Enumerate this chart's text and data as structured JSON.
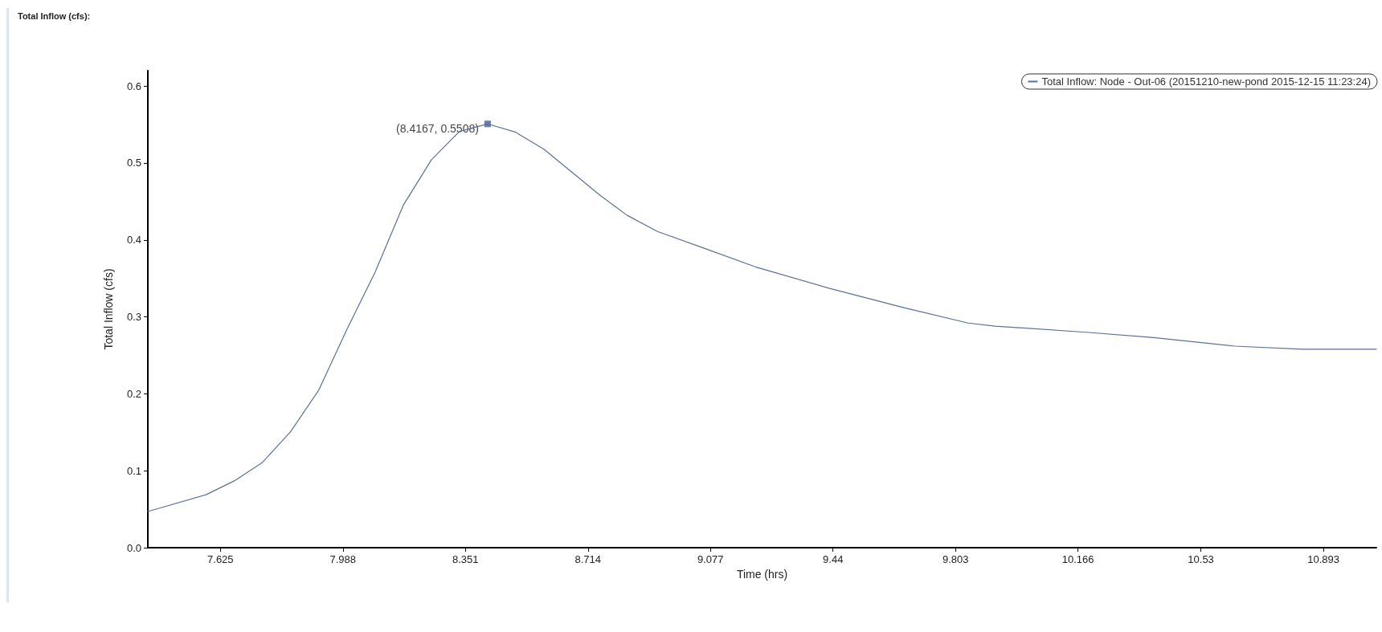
{
  "chart_data": {
    "type": "line",
    "xlabel": "Time (hrs)",
    "ylabel": "Total Inflow (cfs)",
    "xlim": [
      7.41,
      11.05
    ],
    "ylim": [
      0,
      0.62
    ],
    "xticks": [
      7.625,
      7.988,
      8.351,
      8.714,
      9.077,
      9.44,
      9.803,
      10.166,
      10.53,
      10.893
    ],
    "yticks": [
      {
        "value": 0,
        "label": "0.0"
      },
      0.1,
      0.2,
      0.3,
      0.4,
      0.5,
      0.6
    ],
    "grid": false,
    "legend": "top right",
    "annotations": [
      "Total Inflow (cfs):",
      {
        "text": "(8.4167, 0.5508)",
        "x": 8.4167,
        "y": 0.5508
      }
    ],
    "series": [
      {
        "name": "Total Inflow: Node - Out-06 (20151210-new-pond 2015-12-15 11:23:24)",
        "color": "#5b7196",
        "x": [
          7.41,
          7.5833,
          7.6667,
          7.75,
          7.8333,
          7.9167,
          8.0,
          8.0833,
          8.1667,
          8.25,
          8.3333,
          8.4167,
          8.5,
          8.5833,
          8.6667,
          8.75,
          8.83,
          8.92,
          9.06,
          9.21,
          9.43,
          9.65,
          9.84,
          9.92,
          10.19,
          10.39,
          10.63,
          10.83,
          11.05
        ],
        "values": [
          0.047,
          0.069,
          0.087,
          0.111,
          0.151,
          0.205,
          0.284,
          0.358,
          0.445,
          0.504,
          0.541,
          0.5508,
          0.54,
          0.518,
          0.488,
          0.458,
          0.432,
          0.411,
          0.389,
          0.365,
          0.337,
          0.312,
          0.292,
          0.288,
          0.28,
          0.273,
          0.262,
          0.258,
          0.258
        ]
      }
    ]
  }
}
